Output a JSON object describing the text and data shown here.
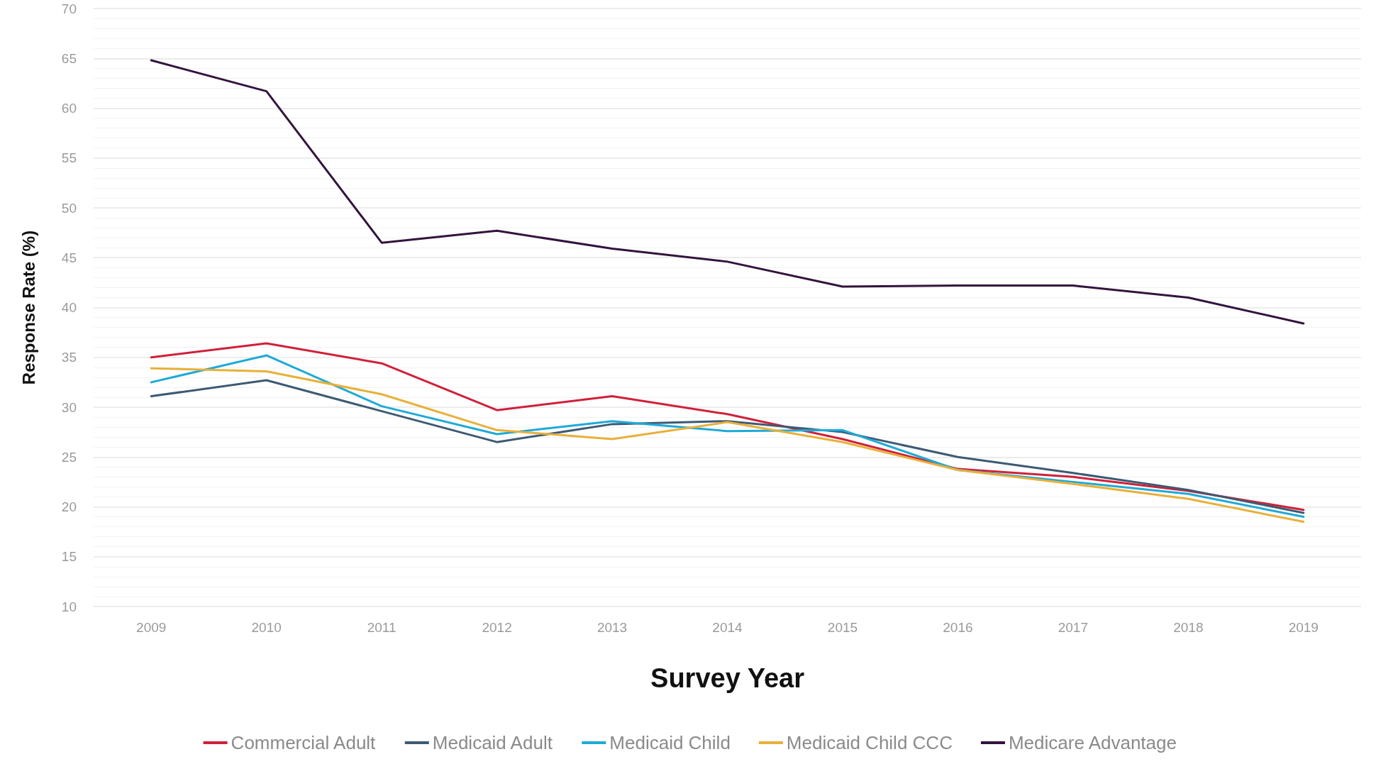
{
  "chart_data": {
    "type": "line",
    "xlabel": "Survey Year",
    "ylabel": "Response Rate (%)",
    "categories": [
      "2009",
      "2010",
      "2011",
      "2012",
      "2013",
      "2014",
      "2015",
      "2016",
      "2017",
      "2018",
      "2019"
    ],
    "series": [
      {
        "name": "Commercial Adult",
        "color": "#d0203a",
        "values": [
          35.0,
          36.4,
          34.4,
          29.7,
          31.1,
          29.3,
          26.8,
          23.8,
          23.0,
          21.6,
          19.7
        ]
      },
      {
        "name": "Medicaid Adult",
        "color": "#3d5a73",
        "values": [
          31.1,
          32.7,
          29.6,
          26.5,
          28.3,
          28.6,
          27.5,
          25.0,
          23.4,
          21.7,
          19.4
        ]
      },
      {
        "name": "Medicaid Child",
        "color": "#1eaad8",
        "values": [
          32.5,
          35.2,
          30.1,
          27.3,
          28.6,
          27.6,
          27.7,
          23.7,
          22.5,
          21.3,
          19.0
        ]
      },
      {
        "name": "Medicaid Child CCC",
        "color": "#e8b03a",
        "values": [
          33.9,
          33.6,
          31.3,
          27.7,
          26.8,
          28.5,
          26.5,
          23.7,
          22.3,
          20.8,
          18.5
        ]
      },
      {
        "name": "Medicare Advantage",
        "color": "#33143d",
        "values": [
          64.8,
          61.7,
          46.5,
          47.7,
          45.9,
          44.6,
          42.1,
          42.2,
          42.2,
          41.0,
          38.4
        ]
      }
    ],
    "ylim": [
      10,
      70
    ],
    "yticks": [
      10,
      15,
      20,
      25,
      30,
      35,
      40,
      45,
      50,
      55,
      60,
      65,
      70
    ],
    "grid": "y",
    "legend": "bottom",
    "marker": "none",
    "line_style": "solid"
  }
}
